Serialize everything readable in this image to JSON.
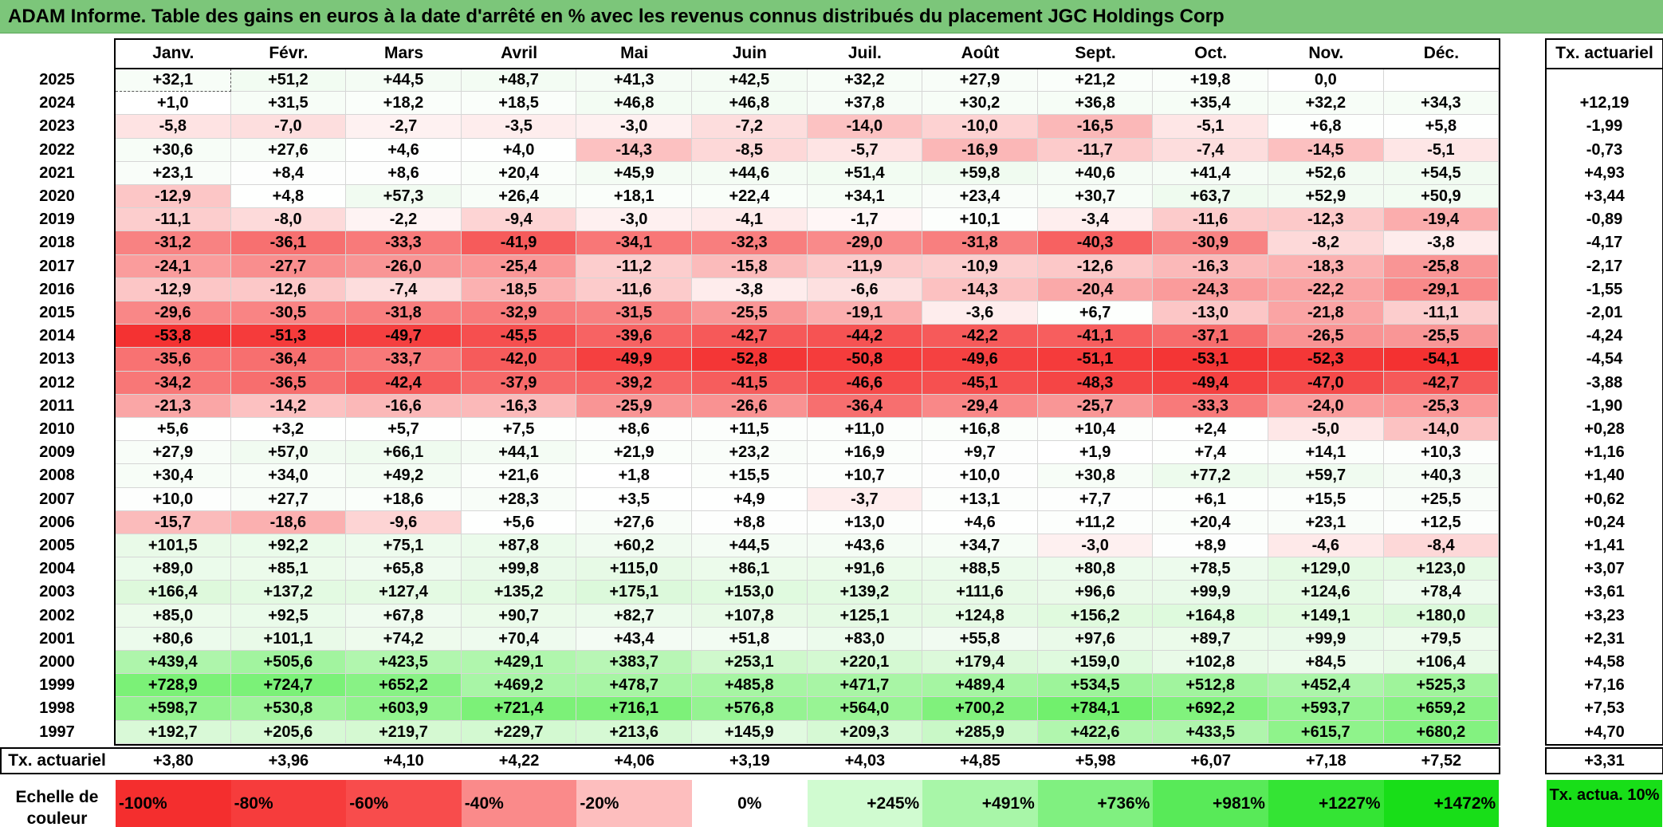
{
  "title": "ADAM Informe. Table des gains en euros à la date d'arrêté en % avec les revenus connus distribués du placement JGC Holdings Corp",
  "chart_data": {
    "type": "heatmap",
    "title": "ADAM Informe. Table des gains en euros à la date d'arrêté en % avec les revenus connus distribués du placement JGC Holdings Corp",
    "columns": [
      "Janv.",
      "Févr.",
      "Mars",
      "Avril",
      "Mai",
      "Juin",
      "Juil.",
      "Août",
      "Sept.",
      "Oct.",
      "Nov.",
      "Déc."
    ],
    "annual_header": "Tx. actuariel",
    "rows": [
      {
        "year": "2025",
        "values": [
          "+32,1",
          "+51,2",
          "+44,5",
          "+48,7",
          "+41,3",
          "+42,5",
          "+32,2",
          "+27,9",
          "+21,2",
          "+19,8",
          "0,0",
          ""
        ],
        "tx": ""
      },
      {
        "year": "2024",
        "values": [
          "+1,0",
          "+31,5",
          "+18,2",
          "+18,5",
          "+46,8",
          "+46,8",
          "+37,8",
          "+30,2",
          "+36,8",
          "+35,4",
          "+32,2",
          "+34,3"
        ],
        "tx": "+12,19"
      },
      {
        "year": "2023",
        "values": [
          "-5,8",
          "-7,0",
          "-2,7",
          "-3,5",
          "-3,0",
          "-7,2",
          "-14,0",
          "-10,0",
          "-16,5",
          "-5,1",
          "+6,8",
          "+5,8"
        ],
        "tx": "-1,99"
      },
      {
        "year": "2022",
        "values": [
          "+30,6",
          "+27,6",
          "+4,6",
          "+4,0",
          "-14,3",
          "-8,5",
          "-5,7",
          "-16,9",
          "-11,7",
          "-7,4",
          "-14,5",
          "-5,1"
        ],
        "tx": "-0,73"
      },
      {
        "year": "2021",
        "values": [
          "+23,1",
          "+8,4",
          "+8,6",
          "+20,4",
          "+45,9",
          "+44,6",
          "+51,4",
          "+59,8",
          "+40,6",
          "+41,4",
          "+52,6",
          "+54,5"
        ],
        "tx": "+4,93"
      },
      {
        "year": "2020",
        "values": [
          "-12,9",
          "+4,8",
          "+57,3",
          "+26,4",
          "+18,1",
          "+22,4",
          "+34,1",
          "+23,4",
          "+30,7",
          "+63,7",
          "+52,9",
          "+50,9"
        ],
        "tx": "+3,44"
      },
      {
        "year": "2019",
        "values": [
          "-11,1",
          "-8,0",
          "-2,2",
          "-9,4",
          "-3,0",
          "-4,1",
          "-1,7",
          "+10,1",
          "-3,4",
          "-11,6",
          "-12,3",
          "-19,4"
        ],
        "tx": "-0,89"
      },
      {
        "year": "2018",
        "values": [
          "-31,2",
          "-36,1",
          "-33,3",
          "-41,9",
          "-34,1",
          "-32,3",
          "-29,0",
          "-31,8",
          "-40,3",
          "-30,9",
          "-8,2",
          "-3,8"
        ],
        "tx": "-4,17"
      },
      {
        "year": "2017",
        "values": [
          "-24,1",
          "-27,7",
          "-26,0",
          "-25,4",
          "-11,2",
          "-15,8",
          "-11,9",
          "-10,9",
          "-12,6",
          "-16,3",
          "-18,3",
          "-25,8"
        ],
        "tx": "-2,17"
      },
      {
        "year": "2016",
        "values": [
          "-12,9",
          "-12,6",
          "-7,4",
          "-18,5",
          "-11,6",
          "-3,8",
          "-6,6",
          "-14,3",
          "-20,4",
          "-24,3",
          "-22,2",
          "-29,1"
        ],
        "tx": "-1,55"
      },
      {
        "year": "2015",
        "values": [
          "-29,6",
          "-30,5",
          "-31,8",
          "-32,9",
          "-31,5",
          "-25,5",
          "-19,1",
          "-3,6",
          "+6,7",
          "-13,0",
          "-21,8",
          "-11,1"
        ],
        "tx": "-2,01"
      },
      {
        "year": "2014",
        "values": [
          "-53,8",
          "-51,3",
          "-49,7",
          "-45,5",
          "-39,6",
          "-42,7",
          "-44,2",
          "-42,2",
          "-41,1",
          "-37,1",
          "-26,5",
          "-25,5"
        ],
        "tx": "-4,24"
      },
      {
        "year": "2013",
        "values": [
          "-35,6",
          "-36,4",
          "-33,7",
          "-42,0",
          "-49,9",
          "-52,8",
          "-50,8",
          "-49,6",
          "-51,1",
          "-53,1",
          "-52,3",
          "-54,1"
        ],
        "tx": "-4,54"
      },
      {
        "year": "2012",
        "values": [
          "-34,2",
          "-36,5",
          "-42,4",
          "-37,9",
          "-39,2",
          "-41,5",
          "-46,6",
          "-45,1",
          "-48,3",
          "-49,4",
          "-47,0",
          "-42,7"
        ],
        "tx": "-3,88"
      },
      {
        "year": "2011",
        "values": [
          "-21,3",
          "-14,2",
          "-16,6",
          "-16,3",
          "-25,9",
          "-26,6",
          "-36,4",
          "-29,4",
          "-25,7",
          "-33,3",
          "-24,0",
          "-25,3"
        ],
        "tx": "-1,90"
      },
      {
        "year": "2010",
        "values": [
          "+5,6",
          "+3,2",
          "+5,7",
          "+7,5",
          "+8,6",
          "+11,5",
          "+11,0",
          "+16,8",
          "+10,4",
          "+2,4",
          "-5,0",
          "-14,0"
        ],
        "tx": "+0,28"
      },
      {
        "year": "2009",
        "values": [
          "+27,9",
          "+57,0",
          "+66,1",
          "+44,1",
          "+21,9",
          "+23,2",
          "+16,9",
          "+9,7",
          "+1,9",
          "+7,4",
          "+14,1",
          "+10,3"
        ],
        "tx": "+1,16"
      },
      {
        "year": "2008",
        "values": [
          "+30,4",
          "+34,0",
          "+49,2",
          "+21,6",
          "+1,8",
          "+15,5",
          "+10,7",
          "+10,0",
          "+30,8",
          "+77,2",
          "+59,7",
          "+40,3"
        ],
        "tx": "+1,40"
      },
      {
        "year": "2007",
        "values": [
          "+10,0",
          "+27,7",
          "+18,6",
          "+28,3",
          "+3,5",
          "+4,9",
          "-3,7",
          "+13,1",
          "+7,7",
          "+6,1",
          "+15,5",
          "+25,5"
        ],
        "tx": "+0,62"
      },
      {
        "year": "2006",
        "values": [
          "-15,7",
          "-18,6",
          "-9,6",
          "+5,6",
          "+27,6",
          "+8,8",
          "+13,0",
          "+4,6",
          "+11,2",
          "+20,4",
          "+23,1",
          "+12,5"
        ],
        "tx": "+0,24"
      },
      {
        "year": "2005",
        "values": [
          "+101,5",
          "+92,2",
          "+75,1",
          "+87,8",
          "+60,2",
          "+44,5",
          "+43,6",
          "+34,7",
          "-3,0",
          "+8,9",
          "-4,6",
          "-8,4"
        ],
        "tx": "+1,41"
      },
      {
        "year": "2004",
        "values": [
          "+89,0",
          "+85,1",
          "+65,8",
          "+99,8",
          "+115,0",
          "+86,1",
          "+91,6",
          "+88,5",
          "+80,8",
          "+78,5",
          "+129,0",
          "+123,0"
        ],
        "tx": "+3,07"
      },
      {
        "year": "2003",
        "values": [
          "+166,4",
          "+137,2",
          "+127,4",
          "+135,2",
          "+175,1",
          "+153,0",
          "+139,2",
          "+111,6",
          "+96,6",
          "+99,9",
          "+124,6",
          "+78,4"
        ],
        "tx": "+3,61"
      },
      {
        "year": "2002",
        "values": [
          "+85,0",
          "+92,5",
          "+67,8",
          "+90,7",
          "+82,7",
          "+107,8",
          "+125,1",
          "+124,8",
          "+156,2",
          "+164,8",
          "+149,1",
          "+180,0"
        ],
        "tx": "+3,23"
      },
      {
        "year": "2001",
        "values": [
          "+80,6",
          "+101,1",
          "+74,2",
          "+70,4",
          "+43,4",
          "+51,8",
          "+83,0",
          "+55,8",
          "+97,6",
          "+89,7",
          "+99,9",
          "+79,5"
        ],
        "tx": "+2,31"
      },
      {
        "year": "2000",
        "values": [
          "+439,4",
          "+505,6",
          "+423,5",
          "+429,1",
          "+383,7",
          "+253,1",
          "+220,1",
          "+179,4",
          "+159,0",
          "+102,8",
          "+84,5",
          "+106,4"
        ],
        "tx": "+4,58"
      },
      {
        "year": "1999",
        "values": [
          "+728,9",
          "+724,7",
          "+652,2",
          "+469,2",
          "+478,7",
          "+485,8",
          "+471,7",
          "+489,4",
          "+534,5",
          "+512,8",
          "+452,4",
          "+525,3"
        ],
        "tx": "+7,16"
      },
      {
        "year": "1998",
        "values": [
          "+598,7",
          "+530,8",
          "+603,9",
          "+721,4",
          "+716,1",
          "+576,8",
          "+564,0",
          "+700,2",
          "+784,1",
          "+692,2",
          "+593,7",
          "+659,2"
        ],
        "tx": "+7,53"
      },
      {
        "year": "1997",
        "values": [
          "+192,7",
          "+205,6",
          "+219,7",
          "+229,7",
          "+213,6",
          "+145,9",
          "+209,3",
          "+285,9",
          "+422,6",
          "+433,5",
          "+615,7",
          "+680,2"
        ],
        "tx": "+4,70"
      }
    ],
    "footer": {
      "label": "Tx. actuariel",
      "values": [
        "+3,80",
        "+3,96",
        "+4,10",
        "+4,22",
        "+4,06",
        "+3,19",
        "+4,03",
        "+4,85",
        "+5,98",
        "+6,07",
        "+7,18",
        "+7,52"
      ],
      "tx": "+3,31"
    },
    "scale": {
      "label": "Echelle de couleur",
      "cells": [
        {
          "text": "-100%",
          "color": "#f42e2e"
        },
        {
          "text": "-80%",
          "color": "#f63c3c"
        },
        {
          "text": "-60%",
          "color": "#f84c4c"
        },
        {
          "text": "-40%",
          "color": "#fa8a8a"
        },
        {
          "text": "-20%",
          "color": "#fdbebe"
        },
        {
          "text": "0%",
          "color": "#ffffff"
        },
        {
          "text": "+245%",
          "color": "#d0fbd0"
        },
        {
          "text": "+491%",
          "color": "#a8f6a8"
        },
        {
          "text": "+736%",
          "color": "#80f080"
        },
        {
          "text": "+981%",
          "color": "#58ea58"
        },
        {
          "text": "+1227%",
          "color": "#34e434"
        },
        {
          "text": "+1472%",
          "color": "#18de18"
        }
      ],
      "tx_label": "Tx. actua. 10%",
      "tx_color": "#18de18"
    }
  }
}
